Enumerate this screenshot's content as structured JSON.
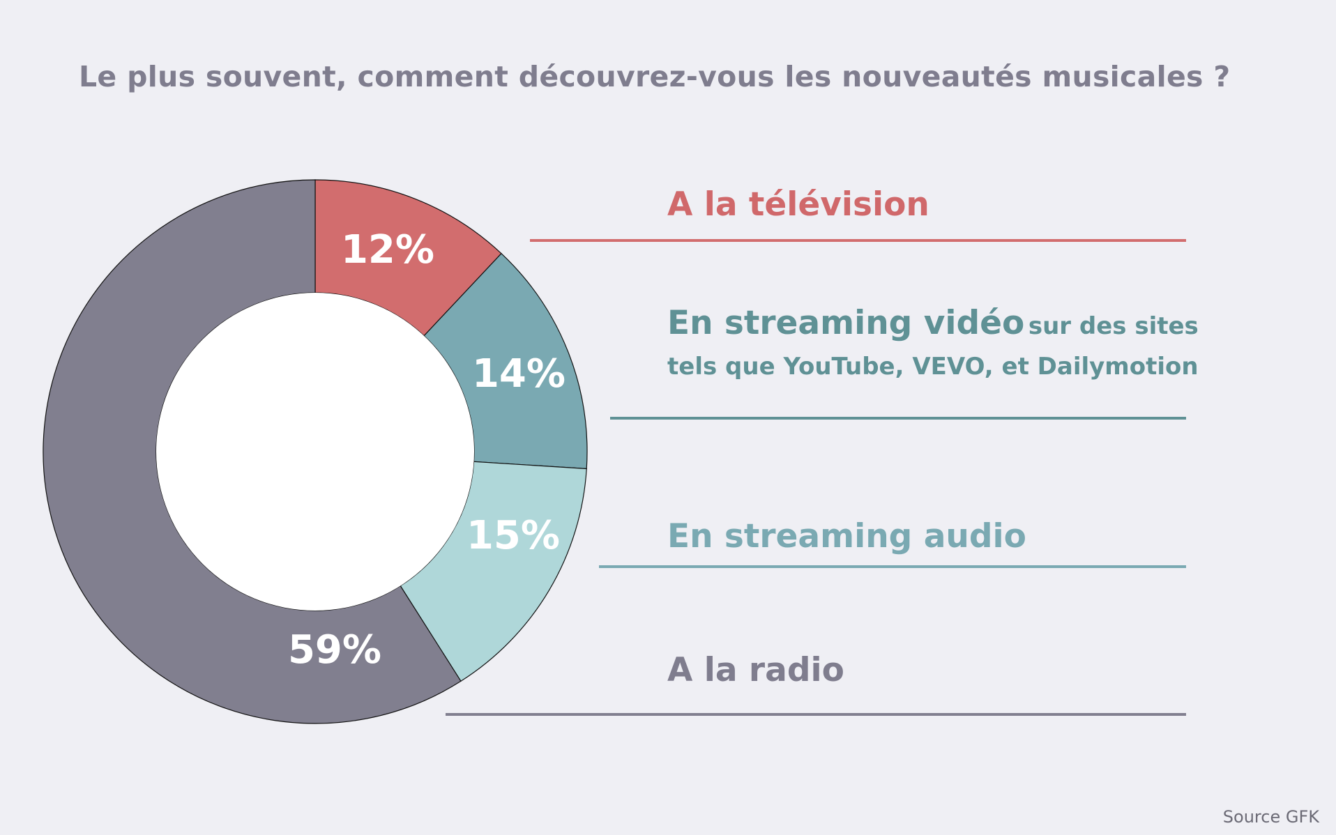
{
  "chart_data": {
    "type": "pie",
    "donut": true,
    "title": "Le plus souvent, comment découvrez-vous les nouveautés musicales ?",
    "slices": [
      {
        "label": "A la télévision",
        "value": 12,
        "value_label": "12%",
        "color": "#d26d6e",
        "text_color": "#d0686a"
      },
      {
        "label": "En streaming vidéo",
        "label_detail": "sur des sites",
        "label_detail_2": "tels que YouTube, VEVO, et Dailymotion",
        "value": 14,
        "value_label": "14%",
        "color": "#7aa9b2",
        "text_color": "#5f9195"
      },
      {
        "label": "En streaming audio",
        "value": 15,
        "value_label": "15%",
        "color": "#afd7d9",
        "text_color": "#7aa9b2"
      },
      {
        "label": "A la radio",
        "value": 59,
        "value_label": "59%",
        "color": "#817f8f",
        "text_color": "#7f7d8e"
      }
    ],
    "source": "Source GFK"
  }
}
